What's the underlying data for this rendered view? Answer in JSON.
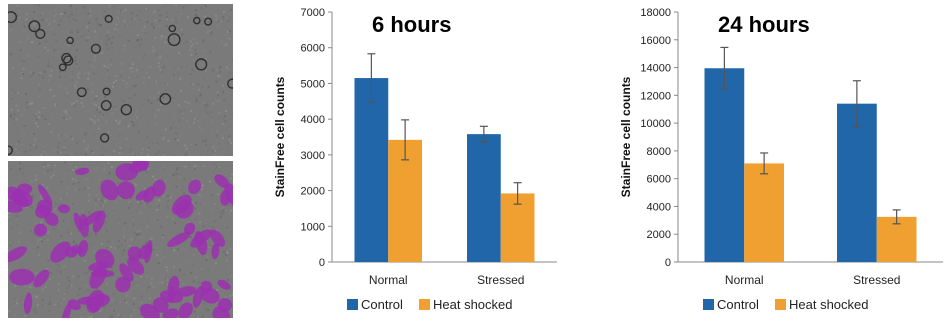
{
  "colors": {
    "control": "#2166a8",
    "heat_shocked": "#f0a030",
    "micro_bg": "#7a7a7a",
    "cell_overlay": "#9b30b0"
  },
  "images": [
    {
      "name": "brightfield-micrograph"
    },
    {
      "name": "segmented-micrograph"
    }
  ],
  "chart_data": [
    {
      "type": "bar",
      "title": "6 hours",
      "ylabel": "StainFree cell counts",
      "xlabel": "",
      "categories": [
        "Normal",
        "Stressed"
      ],
      "ylim": [
        0,
        7000
      ],
      "yticks": [
        0,
        1000,
        2000,
        3000,
        4000,
        5000,
        6000,
        7000
      ],
      "grid": false,
      "legend_placement": "bottom",
      "series": [
        {
          "name": "Control",
          "values": [
            5150,
            3580
          ],
          "errors": [
            680,
            220
          ]
        },
        {
          "name": "Heat shocked",
          "values": [
            3420,
            1920
          ],
          "errors": [
            560,
            300
          ]
        }
      ]
    },
    {
      "type": "bar",
      "title": "24 hours",
      "ylabel": "StainFree cell counts",
      "xlabel": "",
      "categories": [
        "Normal",
        "Stressed"
      ],
      "ylim": [
        0,
        18000
      ],
      "yticks": [
        0,
        2000,
        4000,
        6000,
        8000,
        10000,
        12000,
        14000,
        16000,
        18000
      ],
      "grid": false,
      "legend_placement": "bottom",
      "series": [
        {
          "name": "Control",
          "values": [
            13950,
            11400
          ],
          "errors": [
            1500,
            1650
          ]
        },
        {
          "name": "Heat shocked",
          "values": [
            7100,
            3250
          ],
          "errors": [
            750,
            500
          ]
        }
      ]
    }
  ]
}
